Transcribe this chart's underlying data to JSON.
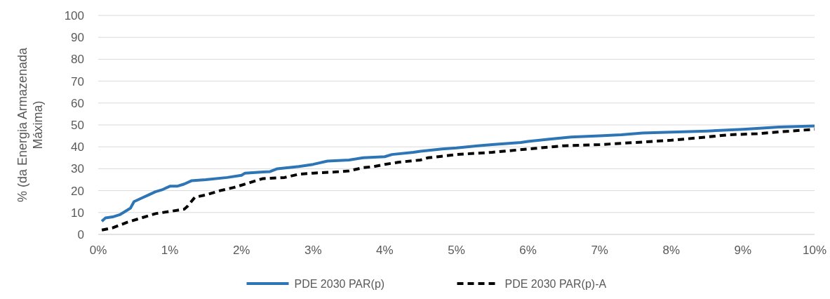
{
  "chart_data": {
    "type": "line",
    "ylabel": "% (da Energia Armazenada Máxima)",
    "xlim": [
      0,
      10
    ],
    "ylim": [
      0,
      100
    ],
    "xticks": [
      {
        "value": 0,
        "label": "0%"
      },
      {
        "value": 1,
        "label": "1%"
      },
      {
        "value": 2,
        "label": "2%"
      },
      {
        "value": 3,
        "label": "3%"
      },
      {
        "value": 4,
        "label": "4%"
      },
      {
        "value": 5,
        "label": "5%"
      },
      {
        "value": 6,
        "label": "6%"
      },
      {
        "value": 7,
        "label": "7%"
      },
      {
        "value": 8,
        "label": "8%"
      },
      {
        "value": 9,
        "label": "9%"
      },
      {
        "value": 10,
        "label": "10%"
      }
    ],
    "yticks": [
      0,
      10,
      20,
      30,
      40,
      50,
      60,
      70,
      80,
      90,
      100
    ],
    "grid": "y",
    "legend": "bottom",
    "series": [
      {
        "name": "PDE 2030 PAR(p)",
        "color": "#2e75b6",
        "line_style": "solid",
        "x": [
          0.05,
          0.1,
          0.2,
          0.3,
          0.4,
          0.45,
          0.5,
          0.6,
          0.7,
          0.8,
          0.9,
          1.0,
          1.1,
          1.2,
          1.3,
          1.5,
          1.8,
          2.0,
          2.05,
          2.3,
          2.4,
          2.5,
          2.8,
          3.0,
          3.2,
          3.5,
          3.7,
          4.0,
          4.1,
          4.4,
          4.5,
          4.8,
          5.0,
          5.3,
          5.5,
          5.9,
          6.0,
          6.3,
          6.6,
          7.0,
          7.3,
          7.6,
          8.0,
          8.5,
          9.0,
          9.5,
          10
        ],
        "values": [
          6,
          7.5,
          8,
          9,
          11,
          12,
          15,
          16.5,
          18,
          19.5,
          20.5,
          22,
          22,
          23,
          24.5,
          25,
          26,
          27,
          28,
          28.5,
          28.7,
          30,
          31,
          32,
          33.5,
          34,
          35,
          35.5,
          36.5,
          37.5,
          38,
          39,
          39.5,
          40.5,
          41,
          42,
          42.5,
          43.5,
          44.5,
          45,
          45.5,
          46.3,
          46.7,
          47.2,
          48,
          49,
          49.5
        ]
      },
      {
        "name": "PDE 2030 PAR(p)-A",
        "color": "#000000",
        "line_style": "dashed",
        "x": [
          0.05,
          0.2,
          0.4,
          0.6,
          0.8,
          1.0,
          1.2,
          1.25,
          1.35,
          1.5,
          1.7,
          1.9,
          2.1,
          2.3,
          2.6,
          2.8,
          3.0,
          3.3,
          3.5,
          3.7,
          3.85,
          4.0,
          4.2,
          4.5,
          4.6,
          4.75,
          5.0,
          5.5,
          6.0,
          6.5,
          7.0,
          7.5,
          8.0,
          8.5,
          8.8,
          9.2,
          9.5,
          10
        ],
        "values": [
          2,
          3,
          5.5,
          7.5,
          9.5,
          10.5,
          11.5,
          13,
          17,
          18,
          20,
          21.5,
          23.5,
          25.5,
          26,
          27.5,
          28,
          28.5,
          29,
          30.5,
          31,
          32,
          33,
          34,
          35,
          35.5,
          36.5,
          37.5,
          39,
          40.5,
          41,
          42,
          43,
          44.5,
          45.5,
          46,
          46.8,
          48
        ]
      }
    ]
  }
}
